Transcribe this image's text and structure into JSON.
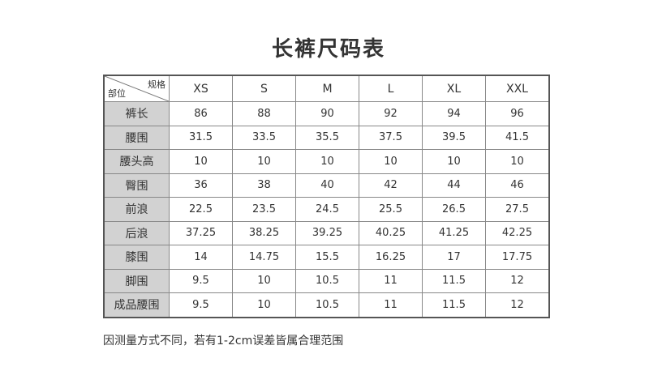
{
  "title": "长裤尺码表",
  "table": {
    "corner_top": "规格",
    "corner_bottom": "部位",
    "sizes": [
      "XS",
      "S",
      "M",
      "L",
      "XL",
      "XXL"
    ],
    "rows": [
      {
        "label": "裤长",
        "values": [
          "86",
          "88",
          "90",
          "92",
          "94",
          "96"
        ]
      },
      {
        "label": "腰围",
        "values": [
          "31.5",
          "33.5",
          "35.5",
          "37.5",
          "39.5",
          "41.5"
        ]
      },
      {
        "label": "腰头高",
        "values": [
          "10",
          "10",
          "10",
          "10",
          "10",
          "10"
        ]
      },
      {
        "label": "臀围",
        "values": [
          "36",
          "38",
          "40",
          "42",
          "44",
          "46"
        ]
      },
      {
        "label": "前浪",
        "values": [
          "22.5",
          "23.5",
          "24.5",
          "25.5",
          "26.5",
          "27.5"
        ]
      },
      {
        "label": "后浪",
        "values": [
          "37.25",
          "38.25",
          "39.25",
          "40.25",
          "41.25",
          "42.25"
        ]
      },
      {
        "label": "膝围",
        "values": [
          "14",
          "14.75",
          "15.5",
          "16.25",
          "17",
          "17.75"
        ]
      },
      {
        "label": "脚围",
        "values": [
          "9.5",
          "10",
          "10.5",
          "11",
          "11.5",
          "12"
        ]
      },
      {
        "label": "成品腰围",
        "values": [
          "9.5",
          "10",
          "10.5",
          "11",
          "11.5",
          "12"
        ]
      }
    ]
  },
  "note": "因测量方式不同，若有1-2cm误差皆属合理范围"
}
